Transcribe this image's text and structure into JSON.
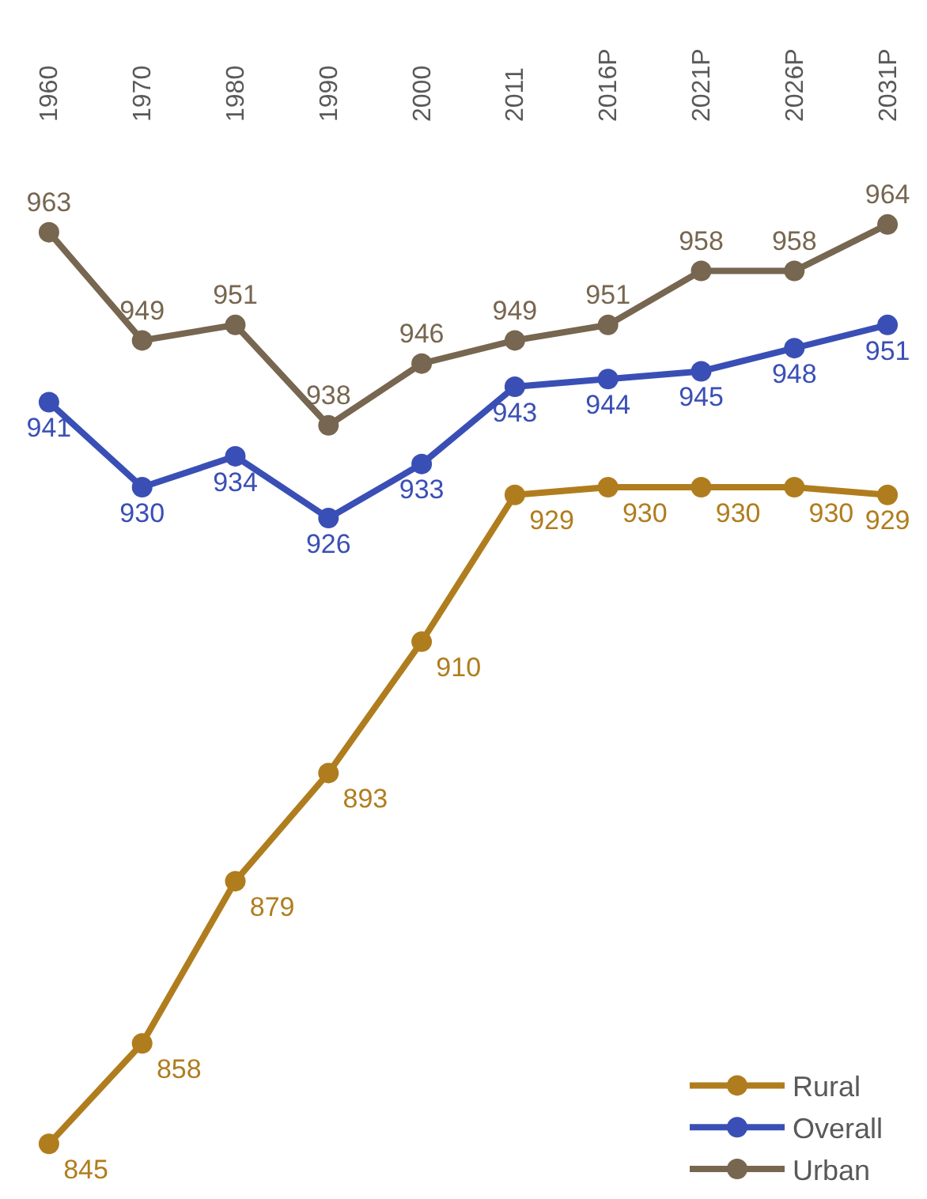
{
  "chart_data": {
    "type": "line",
    "categories": [
      "1960",
      "1970",
      "1980",
      "1990",
      "2000",
      "2011",
      "2016P",
      "2021P",
      "2026P",
      "2031P"
    ],
    "series": [
      {
        "name": "Rural",
        "color": "#b07d1e",
        "values": [
          845,
          858,
          879,
          893,
          910,
          929,
          930,
          930,
          930,
          929
        ]
      },
      {
        "name": "Overall",
        "color": "#3a4fb5",
        "values": [
          941,
          930,
          934,
          926,
          933,
          943,
          944,
          945,
          948,
          951
        ]
      },
      {
        "name": "Urban",
        "color": "#776650",
        "values": [
          963,
          949,
          951,
          938,
          946,
          949,
          951,
          958,
          958,
          964
        ]
      }
    ],
    "data_labels": true,
    "marker": "circle",
    "line_style": "solid",
    "legend": "bottom right"
  }
}
